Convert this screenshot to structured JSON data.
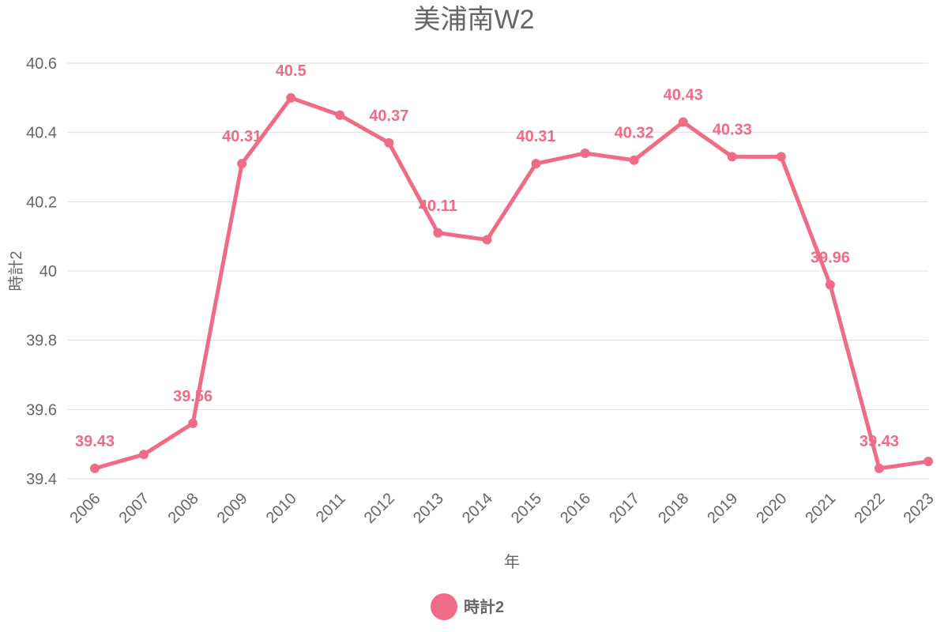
{
  "chart_data": {
    "type": "line",
    "title": "美浦南W2",
    "xlabel": "年",
    "ylabel": "時計2",
    "ylim": [
      39.4,
      40.6
    ],
    "yticks": [
      "39.4",
      "39.6",
      "39.8",
      "40",
      "40.2",
      "40.4",
      "40.6"
    ],
    "grid": true,
    "legend_position": "bottom",
    "color": "#f06b86",
    "categories": [
      "2006",
      "2007",
      "2008",
      "2009",
      "2010",
      "2011",
      "2012",
      "2013",
      "2014",
      "2015",
      "2016",
      "2017",
      "2018",
      "2019",
      "2020",
      "2021",
      "2022",
      "2023"
    ],
    "series": [
      {
        "name": "時計2",
        "values": [
          39.43,
          39.47,
          39.56,
          40.31,
          40.5,
          40.45,
          40.37,
          40.11,
          40.09,
          40.31,
          40.34,
          40.32,
          40.43,
          40.33,
          40.33,
          39.96,
          39.43,
          39.45
        ]
      }
    ],
    "data_labels": [
      {
        "year": "2006",
        "text": "39.43"
      },
      {
        "year": "2008",
        "text": "39.56"
      },
      {
        "year": "2009",
        "text": "40.31"
      },
      {
        "year": "2010",
        "text": "40.5"
      },
      {
        "year": "2012",
        "text": "40.37"
      },
      {
        "year": "2013",
        "text": "40.11"
      },
      {
        "year": "2015",
        "text": "40.31"
      },
      {
        "year": "2017",
        "text": "40.32"
      },
      {
        "year": "2018",
        "text": "40.43"
      },
      {
        "year": "2019",
        "text": "40.33"
      },
      {
        "year": "2021",
        "text": "39.96"
      },
      {
        "year": "2022",
        "text": "39.43"
      }
    ]
  }
}
